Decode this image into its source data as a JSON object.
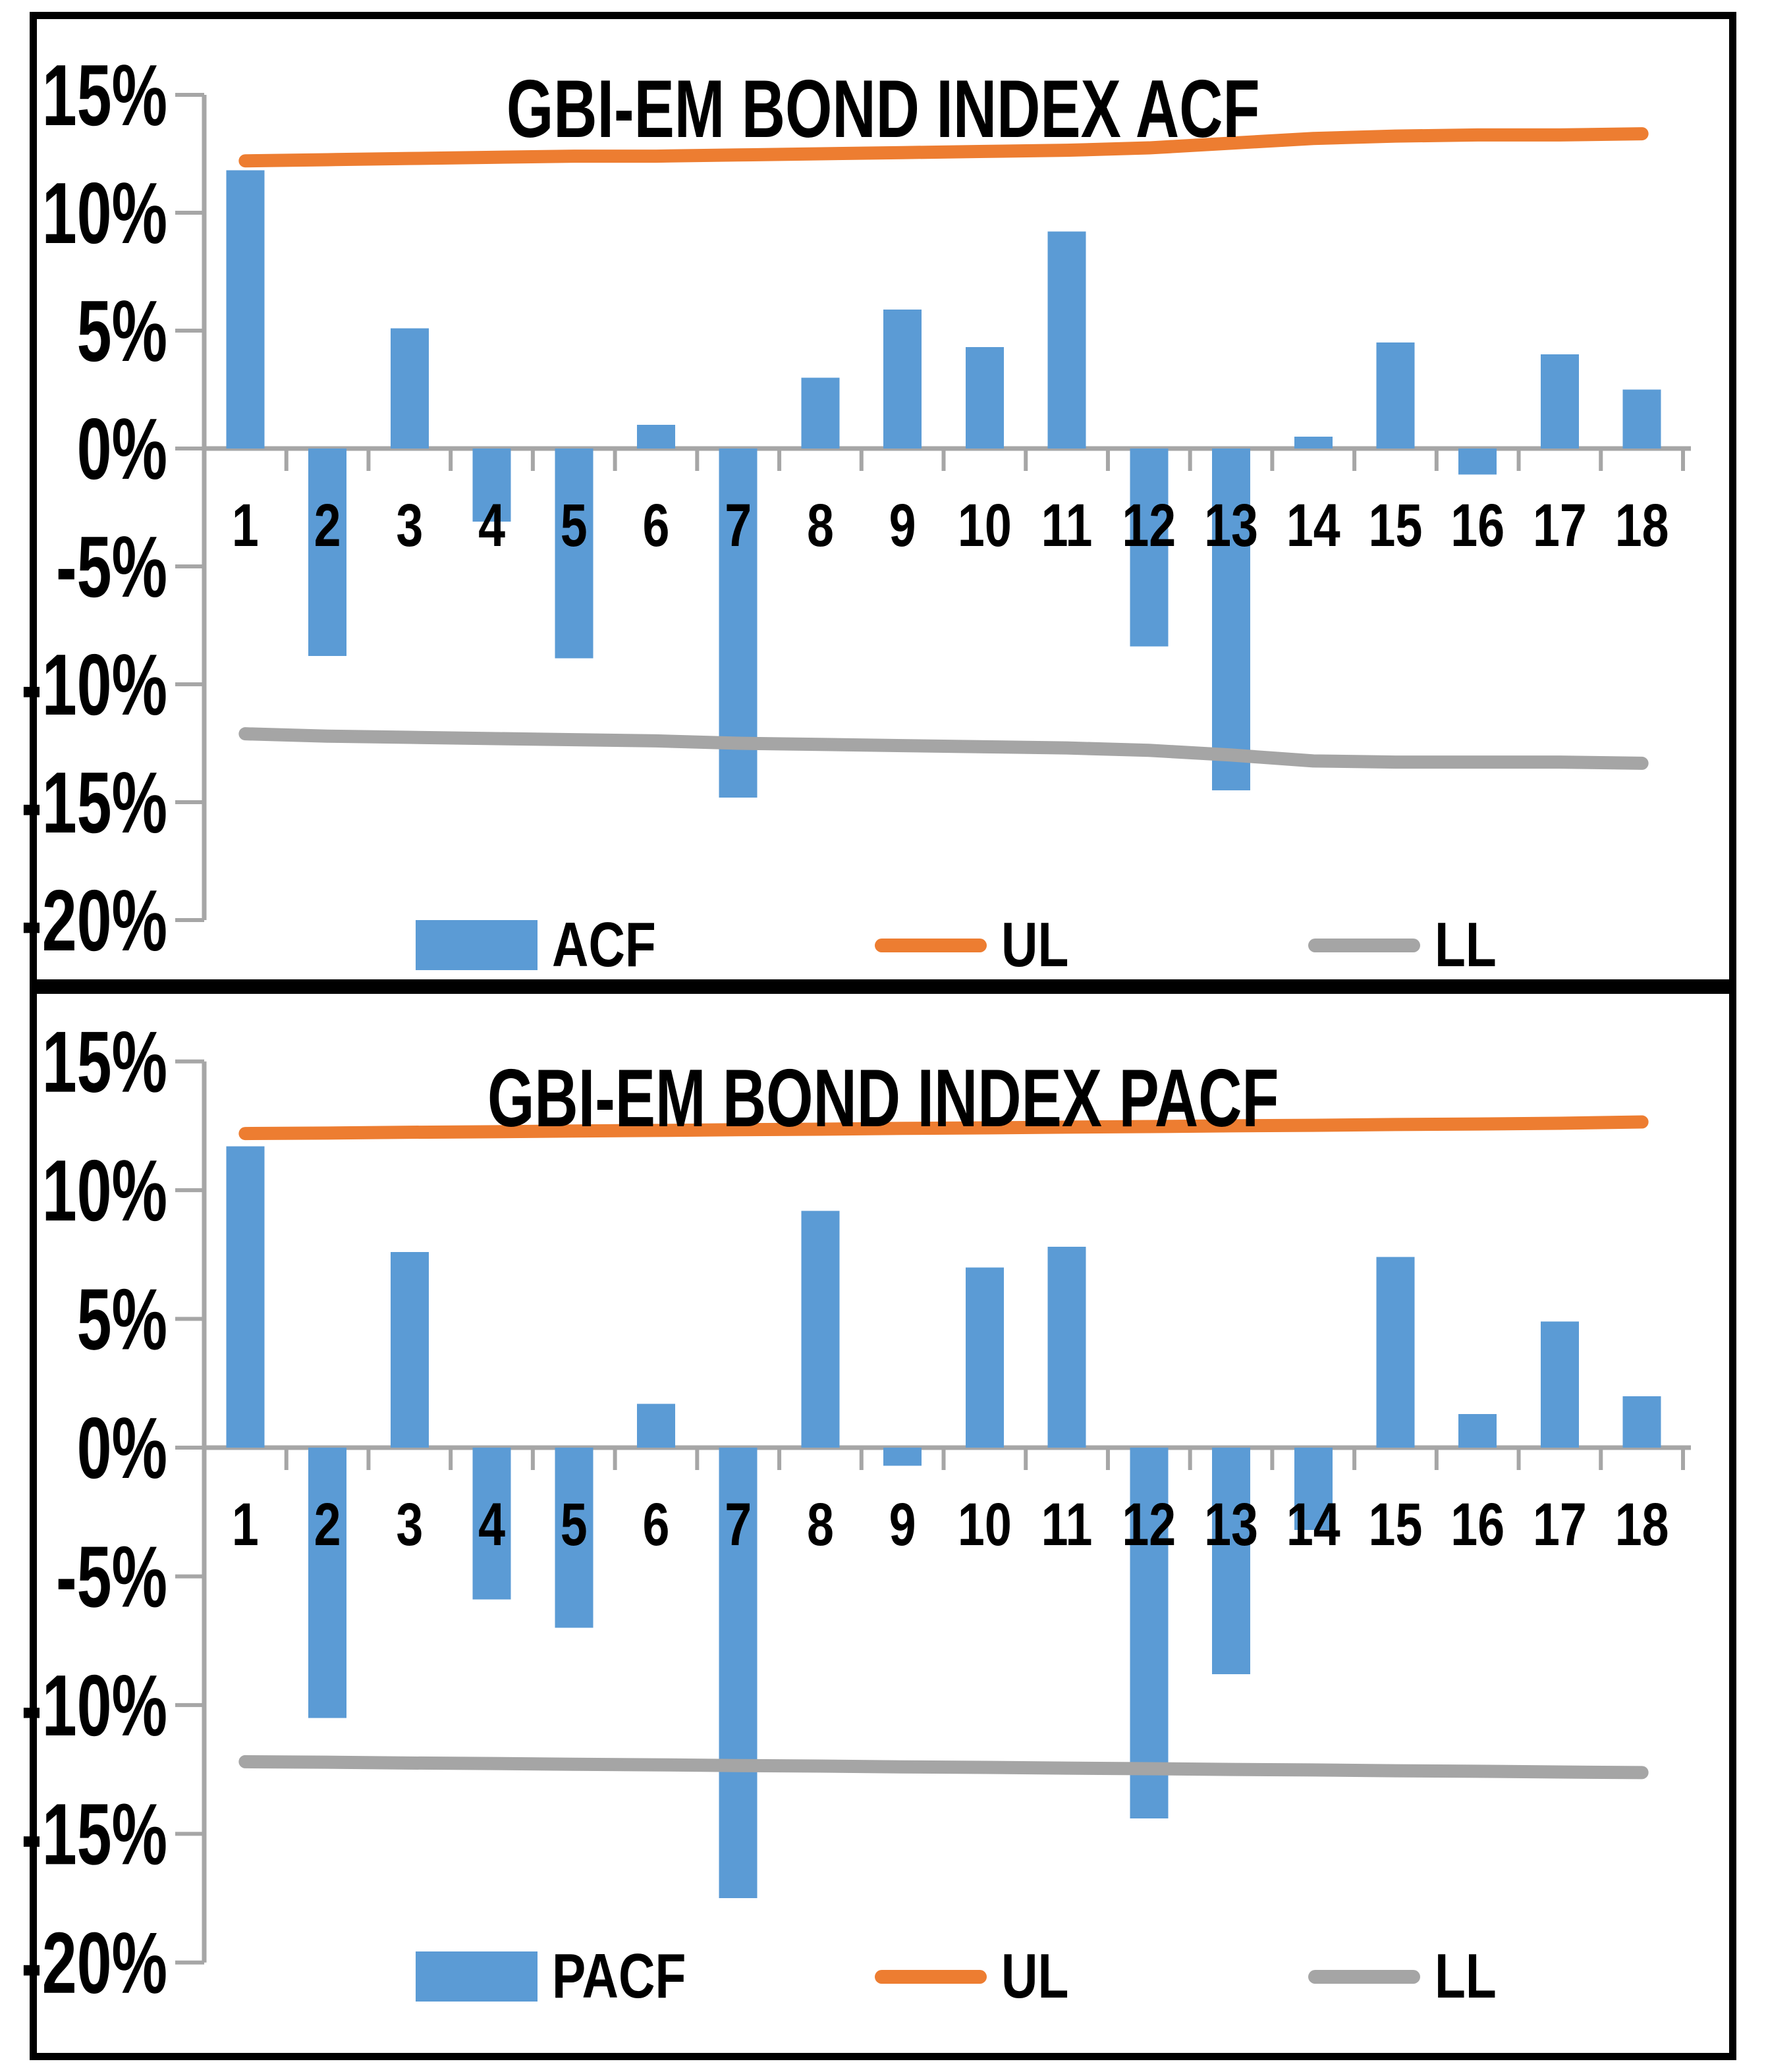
{
  "colors": {
    "bar_fill": "#5B9BD5",
    "ul_line": "#ED7D31",
    "ll_line": "#A5A5A5",
    "axis_line": "#A6A6A6",
    "text": "#000000",
    "panel_border": "#000000",
    "background": "#ffffff"
  },
  "chart_data": [
    {
      "type": "bar",
      "title": "GBI-EM BOND INDEX ACF",
      "categories": [
        "1",
        "2",
        "3",
        "4",
        "5",
        "6",
        "7",
        "8",
        "9",
        "10",
        "11",
        "12",
        "13",
        "14",
        "15",
        "16",
        "17",
        "18"
      ],
      "xlabel": "",
      "ylabel": "",
      "ylim": [
        -20,
        15
      ],
      "ytick_values": [
        15,
        10,
        5,
        0,
        -5,
        -10,
        -15,
        -20
      ],
      "ytick_labels": [
        "15%",
        "10%",
        "5%",
        "0%",
        "-5%",
        "-10%",
        "-15%",
        "-20%"
      ],
      "grid": false,
      "legend_position": "bottom",
      "series": [
        {
          "name": "ACF",
          "type": "bar",
          "values": [
            11.8,
            -8.8,
            5.1,
            -3.1,
            -8.9,
            1.0,
            -14.8,
            3.0,
            5.9,
            4.3,
            9.2,
            -8.4,
            -14.5,
            0.5,
            4.5,
            -1.1,
            4.0,
            2.5
          ]
        },
        {
          "name": "UL",
          "type": "line",
          "values": [
            12.2,
            12.25,
            12.3,
            12.35,
            12.4,
            12.4,
            12.45,
            12.5,
            12.55,
            12.6,
            12.65,
            12.75,
            12.95,
            13.15,
            13.25,
            13.3,
            13.3,
            13.35
          ]
        },
        {
          "name": "LL",
          "type": "line",
          "values": [
            -12.1,
            -12.2,
            -12.25,
            -12.3,
            -12.35,
            -12.4,
            -12.5,
            -12.55,
            -12.6,
            -12.65,
            -12.7,
            -12.8,
            -13.0,
            -13.25,
            -13.3,
            -13.3,
            -13.3,
            -13.35
          ]
        }
      ]
    },
    {
      "type": "bar",
      "title": "GBI-EM BOND INDEX PACF",
      "categories": [
        "1",
        "2",
        "3",
        "4",
        "5",
        "6",
        "7",
        "8",
        "9",
        "10",
        "11",
        "12",
        "13",
        "14",
        "15",
        "16",
        "17",
        "18"
      ],
      "xlabel": "",
      "ylabel": "",
      "ylim": [
        -20,
        15
      ],
      "ytick_values": [
        15,
        10,
        5,
        0,
        -5,
        -10,
        -15,
        -20
      ],
      "ytick_labels": [
        "15%",
        "10%",
        "5%",
        "0%",
        "-5%",
        "-10%",
        "-15%",
        "-20%"
      ],
      "grid": false,
      "legend_position": "bottom",
      "series": [
        {
          "name": "PACF",
          "type": "bar",
          "values": [
            11.7,
            -10.5,
            7.6,
            -5.9,
            -7.0,
            1.7,
            -17.5,
            9.2,
            -0.7,
            7.0,
            7.8,
            -14.4,
            -8.8,
            -3.2,
            7.4,
            1.3,
            4.9,
            2.0
          ]
        },
        {
          "name": "UL",
          "type": "line",
          "values": [
            12.2,
            12.22,
            12.25,
            12.27,
            12.3,
            12.32,
            12.35,
            12.37,
            12.4,
            12.42,
            12.45,
            12.47,
            12.5,
            12.52,
            12.55,
            12.57,
            12.6,
            12.65
          ]
        },
        {
          "name": "LL",
          "type": "line",
          "values": [
            -12.2,
            -12.22,
            -12.25,
            -12.27,
            -12.3,
            -12.32,
            -12.35,
            -12.37,
            -12.4,
            -12.42,
            -12.45,
            -12.47,
            -12.5,
            -12.52,
            -12.55,
            -12.57,
            -12.6,
            -12.62
          ]
        }
      ]
    }
  ]
}
